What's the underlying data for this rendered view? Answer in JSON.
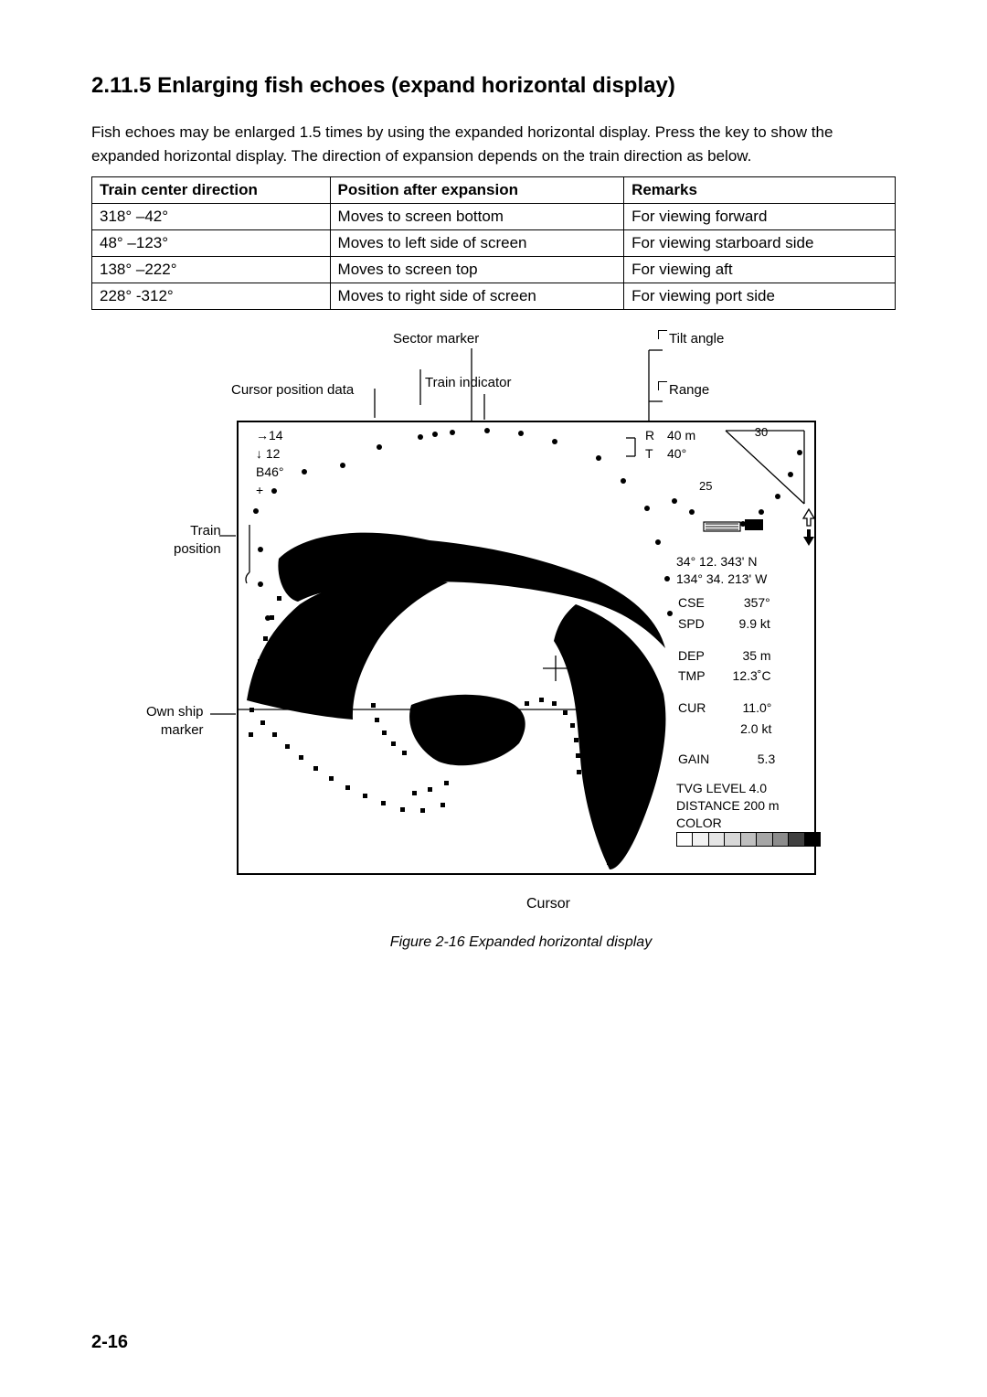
{
  "heading": "2.11.5 Enlarging fish echoes (expand horizontal display)",
  "intro": "Fish echoes may be enlarged 1.5 times by using the expanded horizontal display. Press the key to show the expanded horizontal display. The direction of expansion depends on the train direction as below.",
  "table": {
    "columns": [
      "Train center direction",
      "Position after expansion",
      "Remarks"
    ],
    "rows": [
      [
        "318° –42°",
        "Moves to screen bottom",
        "For viewing forward"
      ],
      [
        "48° –123°",
        "Moves to left side of screen",
        "For viewing starboard side"
      ],
      [
        "138° –222°",
        "Moves to screen top",
        "For viewing aft"
      ],
      [
        "228° -312°",
        "Moves to right side of screen",
        "For viewing port side"
      ]
    ]
  },
  "callouts": {
    "sector_marker": "Sector marker",
    "tilt_angle": "Tilt angle",
    "cursor_pos_data": "Cursor position data",
    "train_indicator": "Train indicator",
    "range": "Range",
    "train_position": "Train\nposition",
    "own_ship_marker": "Own ship\nmarker",
    "cursor": "Cursor"
  },
  "display": {
    "cursor_data": {
      "right": "→14",
      "down": "↓ 12",
      "bearing": "B46°",
      "plus": "+"
    },
    "range_label": "R",
    "range_val": "40 m",
    "tilt_label": "T",
    "tilt_val": "40°",
    "mini": {
      "tick30": "30",
      "tick25": "25"
    },
    "nav": {
      "lat": "34° 12. 343' N",
      "lon": "134° 34. 213' W",
      "cse_l": "CSE",
      "cse_v": "357°",
      "spd_l": "SPD",
      "spd_v": "9.9 kt",
      "dep_l": "DEP",
      "dep_v": "35 m",
      "tmp_l": "TMP",
      "tmp_v": "12.3˚C",
      "cur_l": "CUR",
      "cur_v1": "11.0°",
      "cur_v2": "2.0 kt",
      "gain_l": "GAIN",
      "gain_v": "5.3",
      "tvg": "TVG LEVEL 4.0",
      "dist": "DISTANCE 200 m",
      "color": "COLOR"
    },
    "color_bar": [
      "#ffffff",
      "#f2f2f2",
      "#e5e5e5",
      "#d8d8d8",
      "#bfbfbf",
      "#a6a6a6",
      "#8c8c8c",
      "#404040",
      "#000000"
    ]
  },
  "figcaption": "Figure 2-16 Expanded horizontal display",
  "pagenum": "2-16"
}
